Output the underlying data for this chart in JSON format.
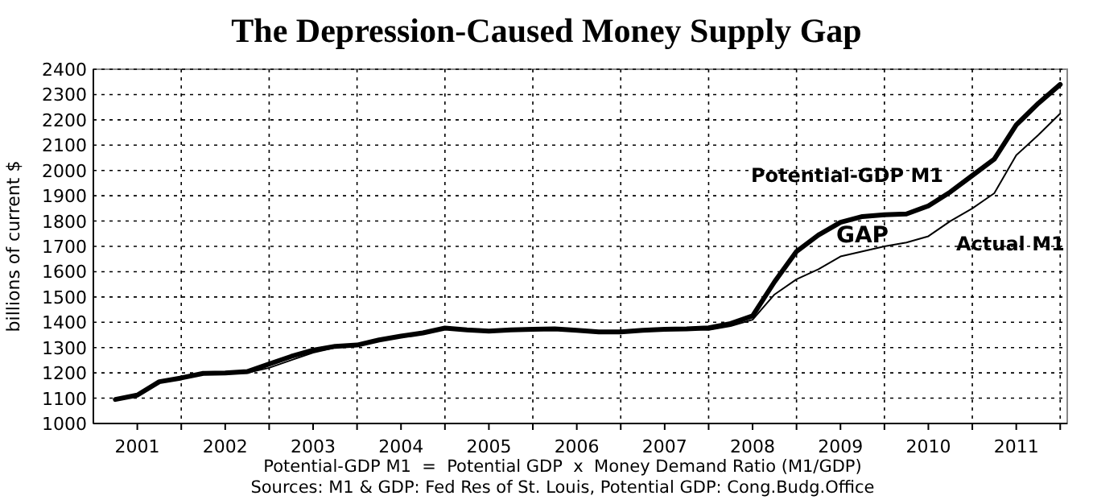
{
  "chart_data": {
    "type": "line",
    "title": "The Depression-Caused Money Supply Gap",
    "ylabel": "billions of current $",
    "x": [
      2001.25,
      2001.5,
      2001.75,
      2002,
      2002.25,
      2002.5,
      2002.75,
      2003,
      2003.25,
      2003.5,
      2003.75,
      2004,
      2004.25,
      2004.5,
      2004.75,
      2005,
      2005.25,
      2005.5,
      2005.75,
      2006,
      2006.25,
      2006.5,
      2006.75,
      2007,
      2007.25,
      2007.5,
      2007.75,
      2008,
      2008.25,
      2008.5,
      2008.75,
      2009,
      2009.25,
      2009.5,
      2009.75,
      2010,
      2010.25,
      2010.5,
      2010.75,
      2011,
      2011.25,
      2011.5,
      2011.75,
      2012
    ],
    "series": [
      {
        "name": "Potential-GDP M1",
        "color": "#000000",
        "values": [
          1095,
          1112,
          1165,
          1180,
          1198,
          1200,
          1205,
          1235,
          1265,
          1290,
          1305,
          1310,
          1330,
          1345,
          1358,
          1377,
          1370,
          1365,
          1370,
          1372,
          1374,
          1368,
          1362,
          1362,
          1368,
          1372,
          1374,
          1378,
          1395,
          1425,
          1560,
          1680,
          1745,
          1795,
          1818,
          1825,
          1828,
          1860,
          1915,
          1980,
          2045,
          2180,
          2265,
          2340
        ]
      },
      {
        "name": "Actual M1",
        "color": "#000000",
        "values": [
          1095,
          1112,
          1165,
          1180,
          1198,
          1200,
          1200,
          1220,
          1250,
          1280,
          1300,
          1310,
          1330,
          1345,
          1358,
          1377,
          1370,
          1365,
          1370,
          1372,
          1374,
          1368,
          1362,
          1362,
          1368,
          1372,
          1374,
          1370,
          1385,
          1410,
          1510,
          1570,
          1610,
          1660,
          1680,
          1700,
          1715,
          1740,
          1800,
          1850,
          1910,
          2060,
          2140,
          2225
        ]
      }
    ],
    "xlim": [
      2001,
      2012.08
    ],
    "xticks": [
      {
        "value": 2001.5,
        "label": "2001"
      },
      {
        "value": 2002,
        "label": null
      },
      {
        "value": 2002.5,
        "label": "2002"
      },
      {
        "value": 2003,
        "label": null
      },
      {
        "value": 2003.5,
        "label": "2003"
      },
      {
        "value": 2004,
        "label": null
      },
      {
        "value": 2004.5,
        "label": "2004"
      },
      {
        "value": 2005,
        "label": null
      },
      {
        "value": 2005.5,
        "label": "2005"
      },
      {
        "value": 2006,
        "label": null
      },
      {
        "value": 2006.5,
        "label": "2006"
      },
      {
        "value": 2007,
        "label": null
      },
      {
        "value": 2007.5,
        "label": "2007"
      },
      {
        "value": 2008,
        "label": null
      },
      {
        "value": 2008.5,
        "label": "2008"
      },
      {
        "value": 2009,
        "label": null
      },
      {
        "value": 2009.5,
        "label": "2009"
      },
      {
        "value": 2010,
        "label": null
      },
      {
        "value": 2010.5,
        "label": "2010"
      },
      {
        "value": 2011,
        "label": null
      },
      {
        "value": 2011.5,
        "label": "2011"
      },
      {
        "value": 2012,
        "label": null
      }
    ],
    "ylim": [
      1000,
      2400
    ],
    "yticks": [
      1000,
      1100,
      1200,
      1300,
      1400,
      1500,
      1600,
      1700,
      1800,
      1900,
      2000,
      2100,
      2200,
      2300,
      2400
    ],
    "grid": true,
    "marker": "none",
    "line_style": "solid",
    "annotations": [
      "GAP",
      "Potential-GDP M1  =  Potential GDP  x  Money Demand Ratio (M1/GDP)",
      "Sources: M1 & GDP: Fed Res of St. Louis, Potential GDP: Cong.Budg.Office"
    ]
  }
}
